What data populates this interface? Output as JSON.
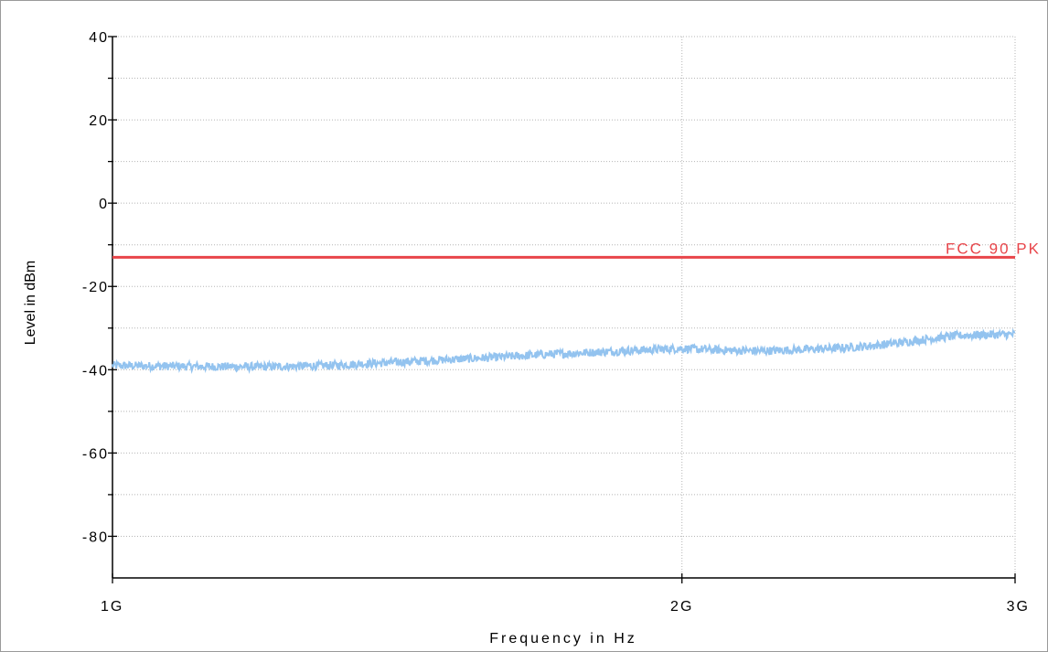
{
  "chart_data": {
    "type": "line",
    "title": "",
    "xlabel": "Frequency in Hz",
    "ylabel": "Level in dBm",
    "x_scale": "log",
    "xlim": [
      1000000000,
      3000000000
    ],
    "ylim": [
      -90,
      40
    ],
    "x_ticks": [
      {
        "value": 1000000000,
        "label": "1G"
      },
      {
        "value": 2000000000,
        "label": "2G"
      },
      {
        "value": 3000000000,
        "label": "3G"
      }
    ],
    "y_ticks": [
      {
        "value": 40,
        "label": "40"
      },
      {
        "value": 20,
        "label": "20"
      },
      {
        "value": 0,
        "label": "0"
      },
      {
        "value": -20,
        "label": "-20"
      },
      {
        "value": -40,
        "label": "-40"
      },
      {
        "value": -60,
        "label": "-60"
      },
      {
        "value": -80,
        "label": "-80"
      }
    ],
    "y_minor_ticks": [
      30,
      10,
      -10,
      -30,
      -50,
      -70
    ],
    "grid": true,
    "limit_line": {
      "name": "FCC 90 PK",
      "value": -13,
      "color": "#e8454a"
    },
    "series": [
      {
        "color": "#93c3ef",
        "x": [
          1000000000,
          1100000000,
          1200000000,
          1300000000,
          1400000000,
          1500000000,
          1600000000,
          1700000000,
          1800000000,
          1900000000,
          2000000000,
          2100000000,
          2200000000,
          2300000000,
          2400000000,
          2500000000,
          2600000000,
          2700000000,
          2800000000,
          2900000000,
          3000000000
        ],
        "y": [
          -39,
          -39.2,
          -39.3,
          -39,
          -38.3,
          -37.6,
          -37,
          -36.3,
          -35.8,
          -35.3,
          -34.9,
          -35.3,
          -35.5,
          -35.2,
          -34.9,
          -34.4,
          -33.6,
          -32.6,
          -31.8,
          -31.6,
          -31.5
        ],
        "noise_amplitude": 1
      }
    ]
  }
}
